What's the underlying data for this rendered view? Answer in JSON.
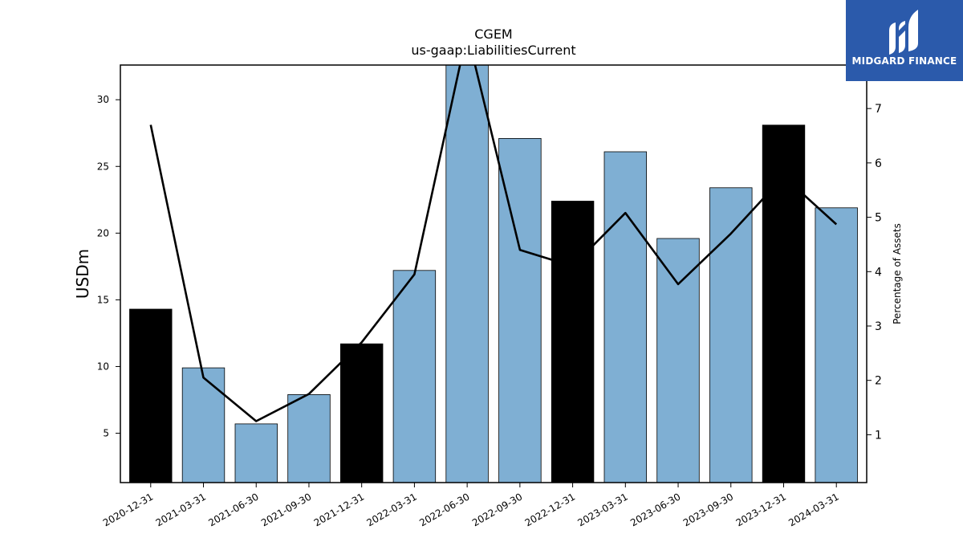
{
  "chart_data": {
    "type": "bar",
    "title": "CGEM",
    "subtitle": "us-gaap:LiabilitiesCurrent",
    "ylabel": "USDm",
    "y2label": "Percentage of Assets",
    "categories": [
      "2020-12-31",
      "2021-03-31",
      "2021-06-30",
      "2021-09-30",
      "2021-12-31",
      "2022-03-31",
      "2022-06-30",
      "2022-09-30",
      "2022-12-31",
      "2023-03-31",
      "2023-06-30",
      "2023-09-30",
      "2023-12-31",
      "2024-03-31"
    ],
    "series": [
      {
        "type": "bar",
        "axis": "left",
        "values": [
          14.3,
          9.9,
          5.7,
          7.9,
          11.7,
          17.2,
          32.8,
          27.1,
          22.4,
          26.1,
          19.6,
          23.4,
          28.1,
          21.9
        ],
        "highlight": [
          true,
          false,
          false,
          false,
          true,
          false,
          false,
          false,
          true,
          false,
          false,
          false,
          true,
          false
        ]
      },
      {
        "type": "line",
        "axis": "right",
        "values": [
          6.7,
          2.05,
          1.25,
          1.75,
          2.7,
          3.95,
          8.4,
          4.4,
          4.1,
          5.08,
          3.77,
          4.7,
          5.75,
          4.87
        ]
      }
    ],
    "ylim": [
      1.3,
      32.6
    ],
    "yticks": [
      5,
      10,
      15,
      20,
      25,
      30
    ],
    "y2lim": [
      0.12,
      7.8
    ],
    "y2ticks": [
      1,
      2,
      3,
      4,
      5,
      6,
      7
    ],
    "colors": {
      "bar": "#7fafd3",
      "highlight": "#000000",
      "line": "#000000"
    },
    "grid": false
  },
  "logo": {
    "text": "MIDGARD FINANCE",
    "background": "#2b5aab"
  }
}
